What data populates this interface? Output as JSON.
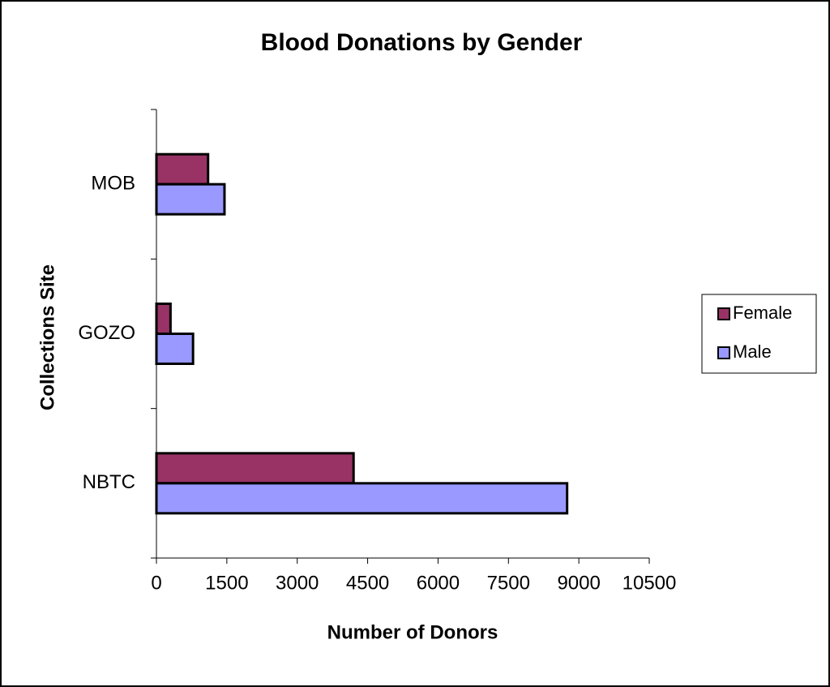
{
  "chart_data": {
    "type": "bar",
    "orientation": "horizontal",
    "title": "Blood Donations by Gender",
    "x_label": "Number of Donors",
    "y_label": "Collections Site",
    "categories": [
      "NBTC",
      "GOZO",
      "MOB"
    ],
    "series": [
      {
        "name": "Female",
        "color": "#993366",
        "values": [
          4200,
          300,
          1100
        ]
      },
      {
        "name": "Male",
        "color": "#9999ff",
        "values": [
          8750,
          780,
          1450
        ]
      }
    ],
    "xlim": [
      0,
      10500
    ],
    "xticks": [
      0,
      1500,
      3000,
      4500,
      6000,
      7500,
      9000,
      10500
    ],
    "grid": false,
    "legend": "right"
  }
}
